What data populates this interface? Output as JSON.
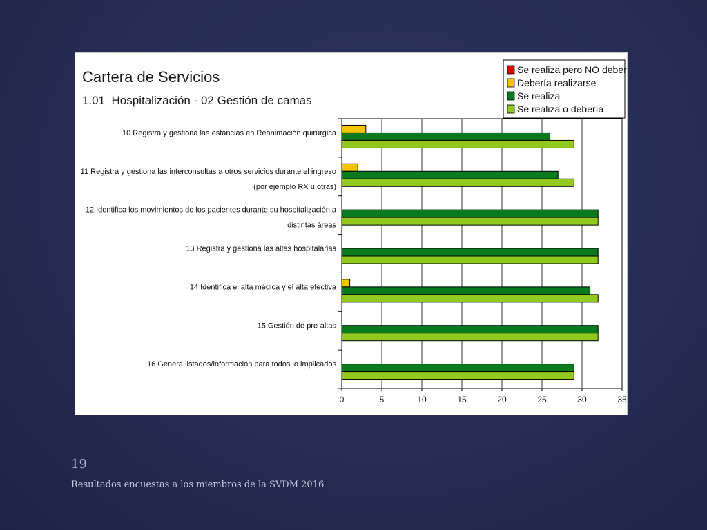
{
  "slide": {
    "number": "19",
    "footer": "Resultados encuestas a los miembros de la SVDM 2016"
  },
  "chart_data": {
    "type": "bar",
    "orientation": "horizontal",
    "title": "Cartera de Servicios",
    "subtitle": "1.01  Hospitalización - 02 Gestión de camas",
    "categories": [
      "10 Registra y gestiona las estancias en Reanimación quirúrgica",
      "11 Registra y gestiona las interconsultas a otros servicios durante el ingreso (por ejemplo RX u otras)",
      "12 Identifica los movimientos de los pacientes durante su hospitalización a distintas áreas",
      "13 Registra y gestiona las altas hospitalarias",
      "14 Identifica el alta médica y el alta efectiva",
      "15 Gestión de pre-altas",
      "16 Genera listados/información para todos lo implicados"
    ],
    "series": [
      {
        "name": "Se realiza pero NO debería",
        "color": "#e00000",
        "values": [
          0,
          0,
          0,
          0,
          0,
          0,
          0
        ]
      },
      {
        "name": "Debería realizarse",
        "color": "#f5c400",
        "values": [
          3,
          2,
          0,
          0,
          1,
          0,
          0
        ]
      },
      {
        "name": "Se realiza",
        "color": "#0a7a1e",
        "values": [
          26,
          27,
          32,
          32,
          31,
          32,
          29
        ]
      },
      {
        "name": "Se realiza o debería",
        "color": "#92c91e",
        "values": [
          29,
          29,
          32,
          32,
          32,
          32,
          29
        ]
      }
    ],
    "xlim": [
      0,
      35
    ],
    "xticks": [
      0,
      5,
      10,
      15,
      20,
      25,
      30,
      35
    ],
    "grid": true,
    "legend_position": "top-right"
  }
}
